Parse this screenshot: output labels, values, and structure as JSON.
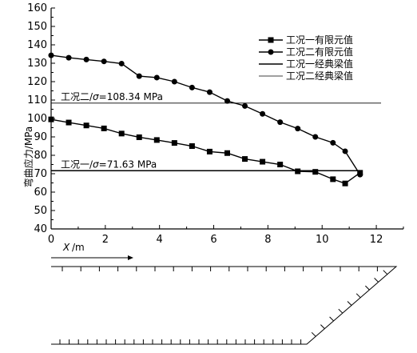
{
  "chart_data": {
    "type": "line",
    "xlabel_var": "X",
    "xlabel_unit": "/m",
    "ylabel": "弯曲应力/MPa",
    "xlim": [
      0,
      13
    ],
    "ylim": [
      40,
      160
    ],
    "xticks": [
      0,
      2,
      4,
      6,
      8,
      10,
      12
    ],
    "yticks": [
      40,
      50,
      60,
      70,
      80,
      90,
      100,
      110,
      120,
      130,
      140,
      150,
      160
    ],
    "legend_position": "top-right",
    "series": [
      {
        "name": "工况一有限元值",
        "marker": "square",
        "x": [
          0,
          0.65,
          1.3,
          1.95,
          2.6,
          3.25,
          3.9,
          4.55,
          5.2,
          5.85,
          6.5,
          7.15,
          7.8,
          8.45,
          9.1,
          9.75,
          10.4,
          10.85,
          11.4
        ],
        "y": [
          99.5,
          97.8,
          96.2,
          94.6,
          91.8,
          89.8,
          88.3,
          86.7,
          85.0,
          82.0,
          81.2,
          78.0,
          76.5,
          75.0,
          71.3,
          71.0,
          67.0,
          64.7,
          70.5
        ]
      },
      {
        "name": "工况二有限元值",
        "marker": "circle",
        "x": [
          0,
          0.65,
          1.3,
          1.95,
          2.6,
          3.25,
          3.9,
          4.55,
          5.2,
          5.85,
          6.5,
          7.15,
          7.8,
          8.45,
          9.1,
          9.75,
          10.4,
          10.85,
          11.4
        ],
        "y": [
          134.3,
          133.0,
          132.0,
          131.0,
          129.8,
          123.0,
          122.2,
          120.0,
          116.8,
          114.3,
          109.5,
          106.8,
          102.5,
          98.0,
          94.5,
          90.0,
          86.8,
          82.2,
          69.5
        ]
      },
      {
        "name": "工况一经典梁值",
        "marker": "none",
        "constant": 71.63,
        "annotation_prefix": "工况一/",
        "annotation_value": "σ=71.63 MPa"
      },
      {
        "name": "工况二经典梁值",
        "marker": "none",
        "constant": 108.34,
        "annotation_prefix": "工况二/",
        "annotation_value": "σ=108.34 MPa"
      }
    ]
  }
}
